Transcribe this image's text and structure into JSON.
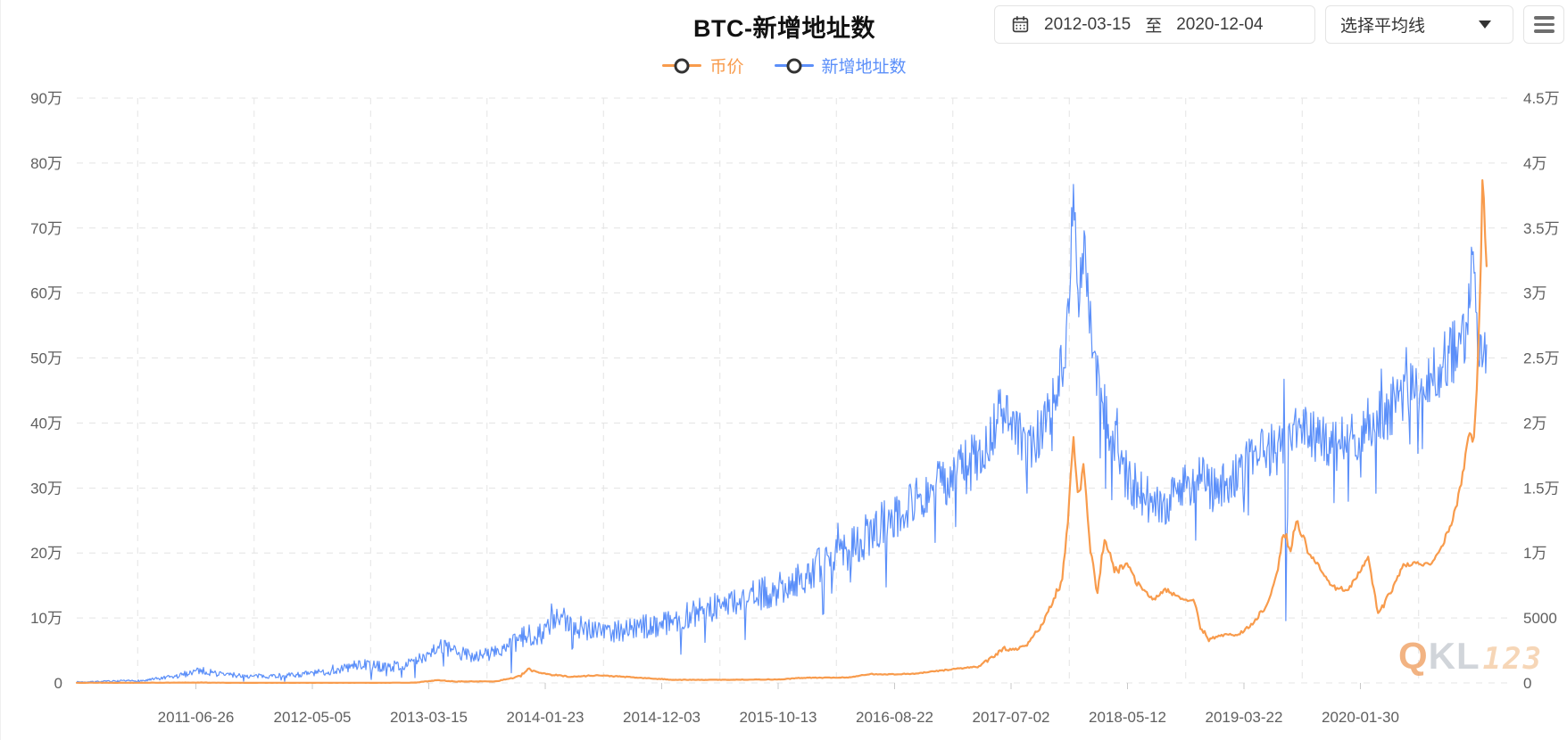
{
  "header": {
    "title": "BTC-新增地址数",
    "date_start": "2012-03-15",
    "date_separator": "至",
    "date_end": "2020-12-04",
    "ma_select_label": "选择平均线"
  },
  "watermark": {
    "q": "Q",
    "kl": "KL",
    "digits": "123"
  },
  "chart_data": {
    "type": "line",
    "title": "BTC-新增地址数",
    "legend_position": "top-center",
    "grid": true,
    "legend": [
      {
        "name": "币价",
        "color": "#F89B4C",
        "axis": "right"
      },
      {
        "name": "新增地址数",
        "color": "#5B8FF9",
        "axis": "left"
      }
    ],
    "x_axis": {
      "range": [
        2010.606,
        2021.018
      ],
      "ticks": [
        "2011-06-26",
        "2012-05-05",
        "2013-03-15",
        "2014-01-23",
        "2014-12-03",
        "2015-10-13",
        "2016-08-22",
        "2017-07-02",
        "2018-05-12",
        "2019-03-22",
        "2020-01-30"
      ],
      "tick_times": [
        2011.486,
        2012.346,
        2013.206,
        2014.066,
        2014.926,
        2015.786,
        2016.646,
        2017.506,
        2018.366,
        2019.226,
        2020.086
      ]
    },
    "y_left": {
      "series": "新增地址数",
      "unit": "万",
      "max": 90,
      "labels": [
        "0",
        "10万",
        "20万",
        "30万",
        "40万",
        "50万",
        "60万",
        "70万",
        "80万",
        "90万"
      ]
    },
    "y_right": {
      "series": "币价",
      "unit": "万",
      "max": 4.5,
      "labels": [
        "0",
        "5000",
        "1万",
        "1.5万",
        "2万",
        "2.5万",
        "3万",
        "3.5万",
        "4万",
        "4.5万"
      ]
    },
    "series": [
      {
        "name": "新增地址数",
        "axis": "left",
        "color": "#5B8FF9",
        "noisy": true,
        "anchors": [
          [
            2010.61,
            0.15,
            0.08
          ],
          [
            2011.1,
            0.35,
            0.18
          ],
          [
            2011.35,
            1.0,
            0.4
          ],
          [
            2011.5,
            2.0,
            0.6
          ],
          [
            2011.65,
            1.4,
            0.5
          ],
          [
            2011.9,
            1.0,
            0.35
          ],
          [
            2012.2,
            1.2,
            0.4
          ],
          [
            2012.5,
            1.8,
            0.6
          ],
          [
            2012.7,
            2.9,
            0.9
          ],
          [
            2012.9,
            2.4,
            0.8
          ],
          [
            2013.1,
            3.1,
            0.9
          ],
          [
            2013.28,
            5.8,
            1.3
          ],
          [
            2013.42,
            4.5,
            1.1
          ],
          [
            2013.6,
            4.2,
            1.1
          ],
          [
            2013.8,
            5.5,
            1.5
          ],
          [
            2013.93,
            7.3,
            1.8
          ],
          [
            2014.05,
            7.8,
            1.8
          ],
          [
            2014.16,
            9.8,
            2.2
          ],
          [
            2014.35,
            8.6,
            2.0
          ],
          [
            2014.55,
            8.0,
            1.8
          ],
          [
            2014.8,
            8.6,
            1.9
          ],
          [
            2015.0,
            9.6,
            2.0
          ],
          [
            2015.25,
            11.2,
            2.2
          ],
          [
            2015.5,
            12.8,
            2.4
          ],
          [
            2015.78,
            14.3,
            2.6
          ],
          [
            2016.0,
            16.8,
            2.8
          ],
          [
            2016.25,
            19.8,
            3.2
          ],
          [
            2016.5,
            23.5,
            3.5
          ],
          [
            2016.7,
            26.8,
            3.8
          ],
          [
            2016.9,
            29.5,
            4.0
          ],
          [
            2017.1,
            32.0,
            4.2
          ],
          [
            2017.3,
            35.5,
            4.4
          ],
          [
            2017.45,
            42.5,
            4.5
          ],
          [
            2017.55,
            38.8,
            4.0
          ],
          [
            2017.63,
            35.5,
            3.8
          ],
          [
            2017.75,
            40.0,
            4.2
          ],
          [
            2017.86,
            45.5,
            4.5
          ],
          [
            2017.93,
            57.0,
            6.0
          ],
          [
            2017.965,
            76.0,
            4.0
          ],
          [
            2018.0,
            60.0,
            5.0
          ],
          [
            2018.045,
            67.5,
            3.5
          ],
          [
            2018.1,
            52.5,
            5.0
          ],
          [
            2018.2,
            42.0,
            4.5
          ],
          [
            2018.32,
            33.5,
            4.0
          ],
          [
            2018.45,
            29.0,
            3.8
          ],
          [
            2018.6,
            27.0,
            3.6
          ],
          [
            2018.75,
            30.0,
            3.8
          ],
          [
            2018.9,
            32.0,
            4.0
          ],
          [
            2019.02,
            29.5,
            3.8
          ],
          [
            2019.15,
            31.5,
            4.0
          ],
          [
            2019.3,
            34.5,
            4.2
          ],
          [
            2019.45,
            36.0,
            4.2
          ],
          [
            2019.515,
            36.5,
            4.0
          ],
          [
            2019.525,
            50.0,
            1.5
          ],
          [
            2019.535,
            9.5,
            1.5
          ],
          [
            2019.55,
            37.0,
            4.0
          ],
          [
            2019.65,
            39.5,
            4.2
          ],
          [
            2019.78,
            37.5,
            4.0
          ],
          [
            2019.9,
            36.5,
            4.0
          ],
          [
            2020.05,
            38.0,
            4.2
          ],
          [
            2020.2,
            40.5,
            4.4
          ],
          [
            2020.35,
            43.0,
            4.6
          ],
          [
            2020.5,
            45.5,
            4.6
          ],
          [
            2020.65,
            48.0,
            4.8
          ],
          [
            2020.78,
            51.0,
            5.0
          ],
          [
            2020.86,
            53.5,
            5.0
          ],
          [
            2020.915,
            65.5,
            3.5
          ],
          [
            2020.95,
            53.5,
            5.0
          ],
          [
            2021.018,
            52.0,
            4.5
          ]
        ]
      },
      {
        "name": "币价",
        "axis": "right",
        "color": "#F89B4C",
        "noisy": false,
        "anchors": [
          [
            2010.61,
            0.0015,
            0.0008
          ],
          [
            2011.35,
            0.002,
            0.001
          ],
          [
            2011.5,
            0.003,
            0.0012
          ],
          [
            2011.75,
            0.001,
            0.0005
          ],
          [
            2012.3,
            0.001,
            0.0004
          ],
          [
            2012.9,
            0.0013,
            0.0005
          ],
          [
            2013.1,
            0.002,
            0.0008
          ],
          [
            2013.27,
            0.021,
            0.003
          ],
          [
            2013.4,
            0.011,
            0.002
          ],
          [
            2013.7,
            0.012,
            0.0015
          ],
          [
            2013.88,
            0.05,
            0.008
          ],
          [
            2013.94,
            0.105,
            0.01
          ],
          [
            2014.02,
            0.082,
            0.007
          ],
          [
            2014.12,
            0.062,
            0.006
          ],
          [
            2014.27,
            0.047,
            0.004
          ],
          [
            2014.44,
            0.059,
            0.004
          ],
          [
            2014.62,
            0.049,
            0.0035
          ],
          [
            2014.8,
            0.037,
            0.003
          ],
          [
            2015.02,
            0.024,
            0.0025
          ],
          [
            2015.2,
            0.0235,
            0.0018
          ],
          [
            2015.5,
            0.025,
            0.0015
          ],
          [
            2015.8,
            0.027,
            0.002
          ],
          [
            2015.97,
            0.04,
            0.003
          ],
          [
            2016.12,
            0.04,
            0.0022
          ],
          [
            2016.3,
            0.042,
            0.0022
          ],
          [
            2016.48,
            0.069,
            0.004
          ],
          [
            2016.62,
            0.066,
            0.003
          ],
          [
            2016.8,
            0.071,
            0.003
          ],
          [
            2017.0,
            0.097,
            0.005
          ],
          [
            2017.15,
            0.114,
            0.006
          ],
          [
            2017.26,
            0.124,
            0.008
          ],
          [
            2017.36,
            0.19,
            0.012
          ],
          [
            2017.45,
            0.265,
            0.015
          ],
          [
            2017.53,
            0.25,
            0.015
          ],
          [
            2017.62,
            0.285,
            0.015
          ],
          [
            2017.72,
            0.43,
            0.02
          ],
          [
            2017.81,
            0.6,
            0.03
          ],
          [
            2017.88,
            0.79,
            0.04
          ],
          [
            2017.93,
            1.28,
            0.06
          ],
          [
            2017.965,
            1.93,
            0.05
          ],
          [
            2018.0,
            1.45,
            0.07
          ],
          [
            2018.045,
            1.68,
            0.05
          ],
          [
            2018.09,
            1.03,
            0.05
          ],
          [
            2018.14,
            0.7,
            0.04
          ],
          [
            2018.2,
            1.12,
            0.04
          ],
          [
            2018.27,
            0.85,
            0.035
          ],
          [
            2018.35,
            0.92,
            0.03
          ],
          [
            2018.45,
            0.75,
            0.025
          ],
          [
            2018.55,
            0.64,
            0.018
          ],
          [
            2018.65,
            0.72,
            0.018
          ],
          [
            2018.76,
            0.65,
            0.012
          ],
          [
            2018.86,
            0.63,
            0.01
          ],
          [
            2018.9,
            0.44,
            0.02
          ],
          [
            2018.97,
            0.33,
            0.015
          ],
          [
            2019.06,
            0.37,
            0.012
          ],
          [
            2019.18,
            0.37,
            0.01
          ],
          [
            2019.3,
            0.46,
            0.015
          ],
          [
            2019.4,
            0.62,
            0.025
          ],
          [
            2019.47,
            0.82,
            0.03
          ],
          [
            2019.52,
            1.17,
            0.05
          ],
          [
            2019.57,
            1.04,
            0.04
          ],
          [
            2019.62,
            1.24,
            0.04
          ],
          [
            2019.7,
            1.02,
            0.035
          ],
          [
            2019.8,
            0.85,
            0.025
          ],
          [
            2019.9,
            0.73,
            0.018
          ],
          [
            2020.0,
            0.72,
            0.015
          ],
          [
            2020.08,
            0.85,
            0.02
          ],
          [
            2020.14,
            0.97,
            0.025
          ],
          [
            2020.22,
            0.52,
            0.03
          ],
          [
            2020.3,
            0.68,
            0.02
          ],
          [
            2020.4,
            0.9,
            0.018
          ],
          [
            2020.5,
            0.92,
            0.015
          ],
          [
            2020.6,
            0.91,
            0.012
          ],
          [
            2020.7,
            1.08,
            0.02
          ],
          [
            2020.78,
            1.3,
            0.03
          ],
          [
            2020.84,
            1.6,
            0.04
          ],
          [
            2020.88,
            1.85,
            0.05
          ],
          [
            2020.9,
            1.95,
            0.04
          ],
          [
            2020.92,
            1.8,
            0.04
          ],
          [
            2020.945,
            2.3,
            0.05
          ],
          [
            2020.965,
            2.85,
            0.06
          ],
          [
            2020.978,
            3.3,
            0.07
          ],
          [
            2020.99,
            4.05,
            0.04
          ],
          [
            2021.0,
            3.55,
            0.06
          ],
          [
            2021.018,
            3.25,
            0.05
          ]
        ]
      }
    ]
  }
}
